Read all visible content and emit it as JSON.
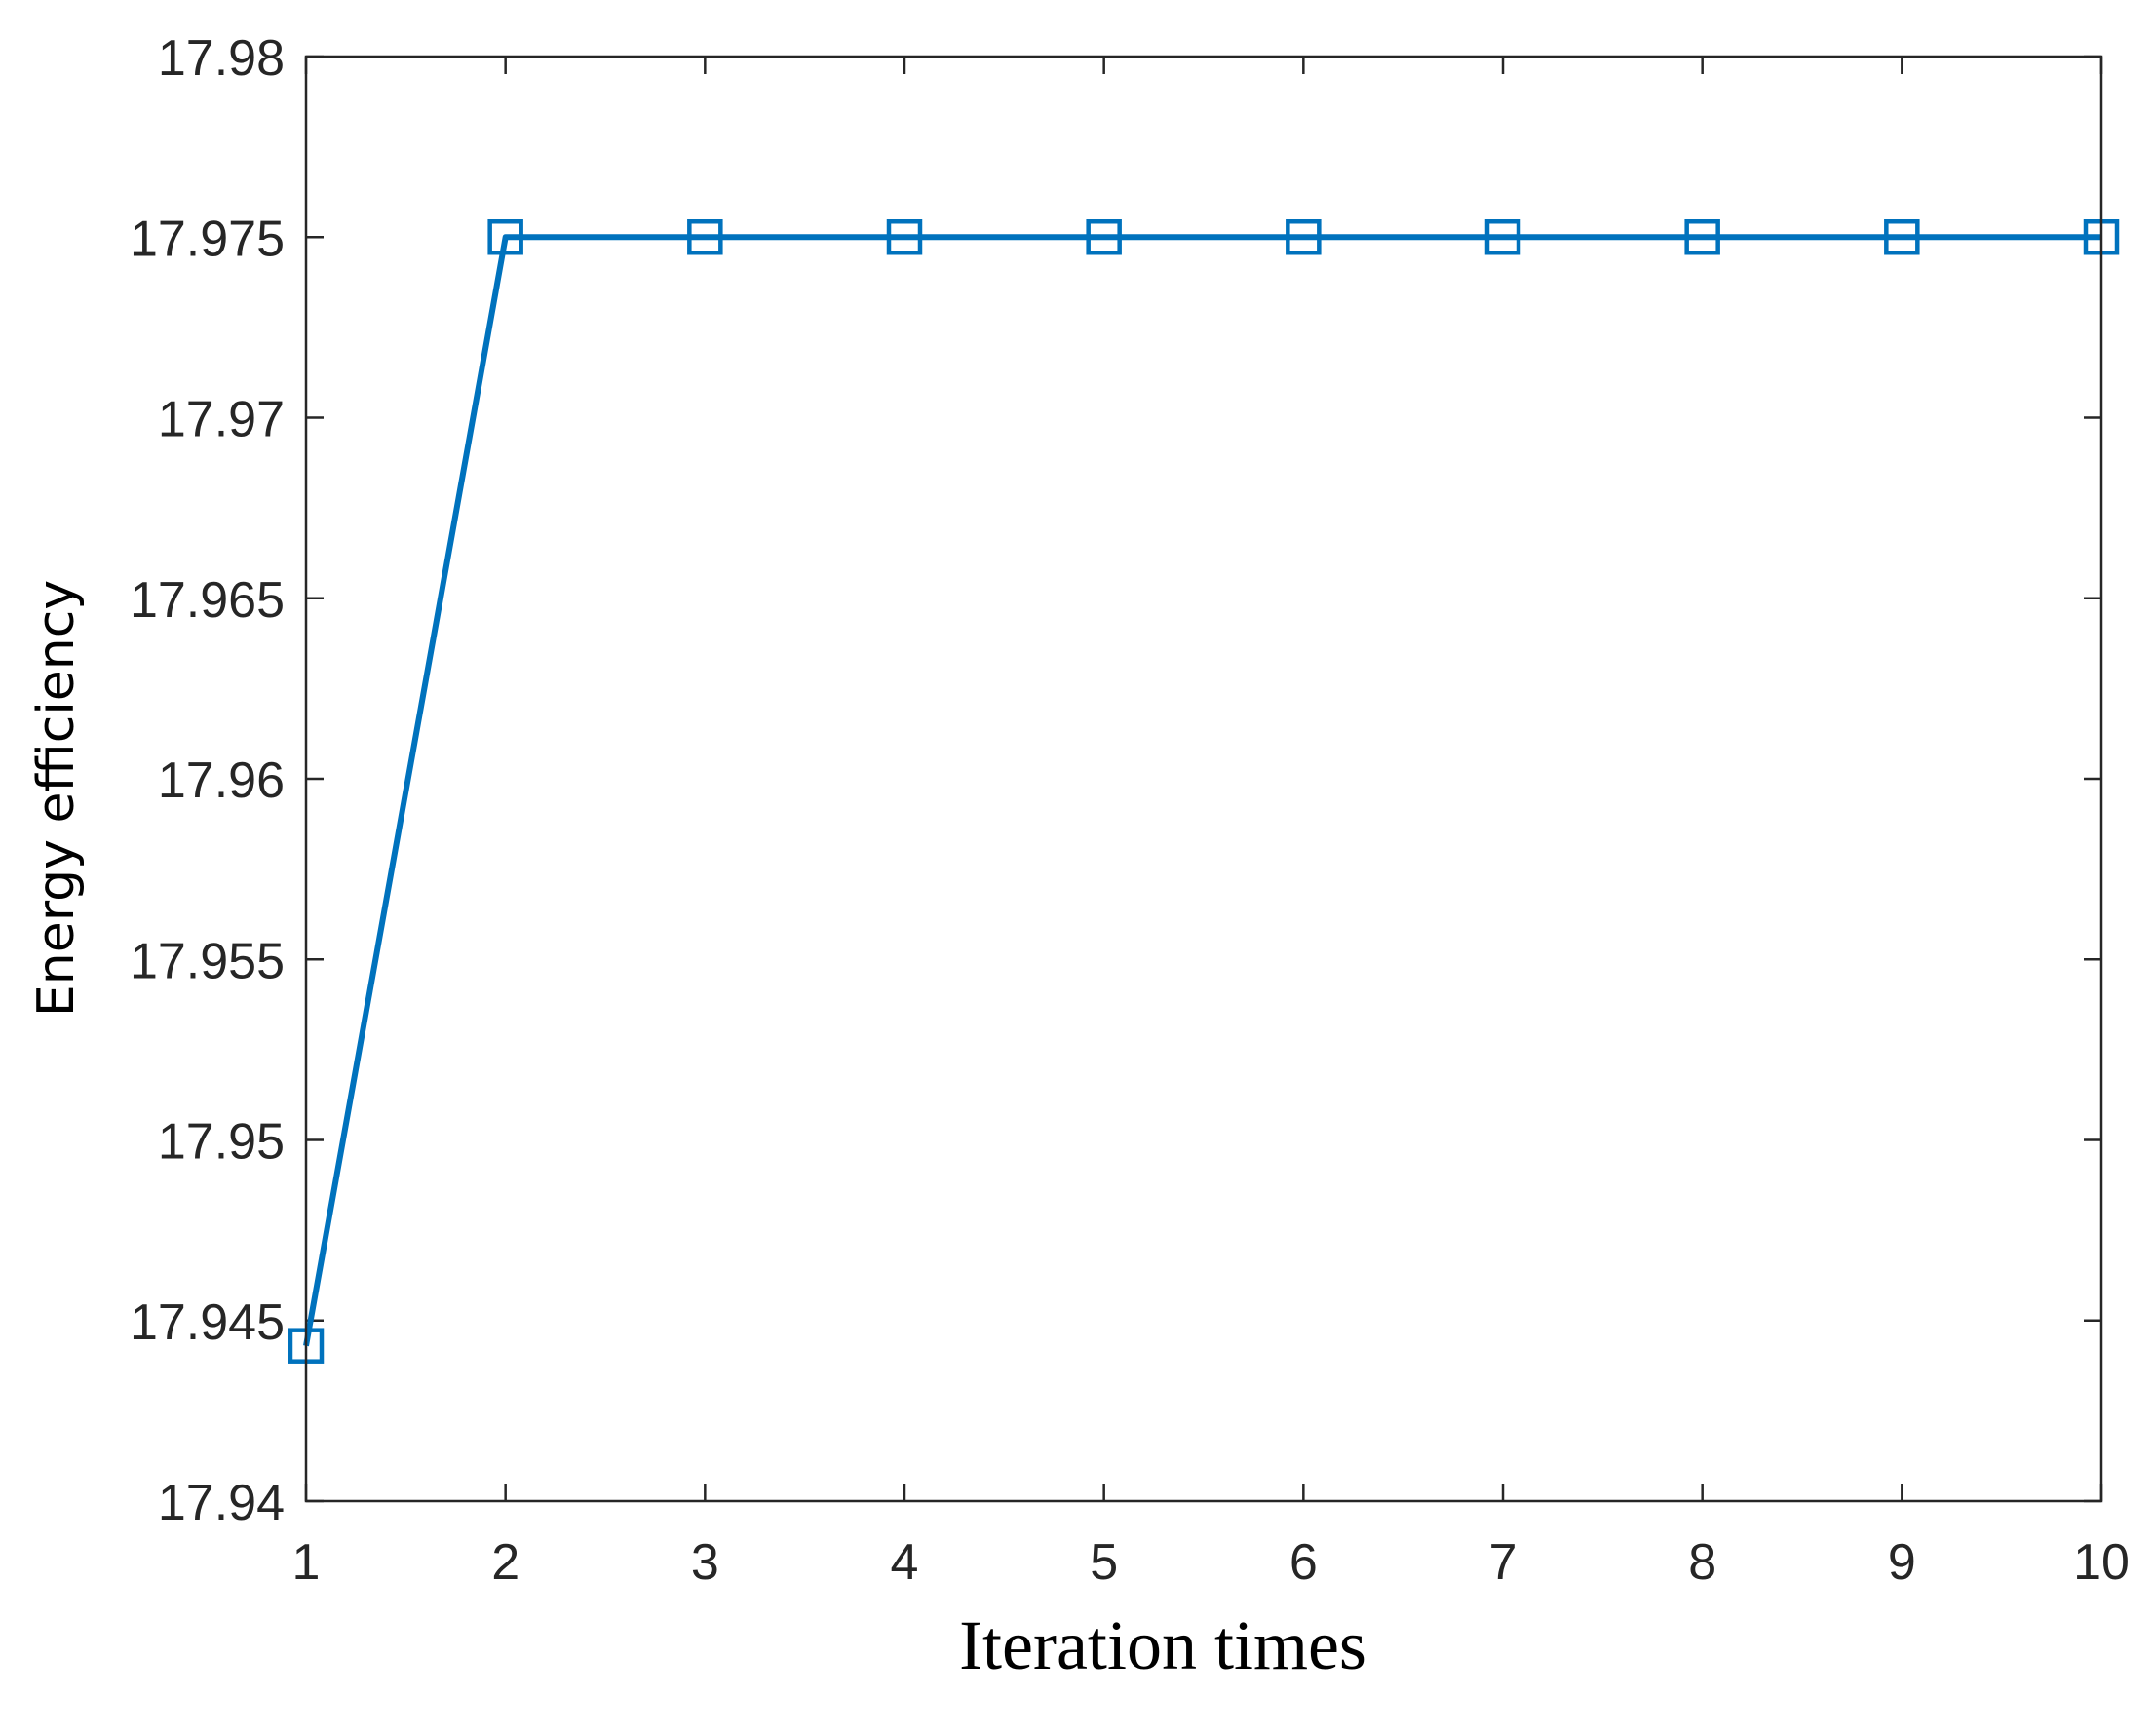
{
  "chart_data": {
    "type": "line",
    "title": "",
    "xlabel": "Iteration times",
    "ylabel": "Energy efficiency",
    "xlim": [
      1,
      10
    ],
    "ylim": [
      17.94,
      17.98
    ],
    "xticks": [
      1,
      2,
      3,
      4,
      5,
      6,
      7,
      8,
      9,
      10
    ],
    "yticks": [
      17.94,
      17.945,
      17.95,
      17.955,
      17.96,
      17.965,
      17.97,
      17.975,
      17.98
    ],
    "ytick_labels": [
      "17.94",
      "17.945",
      "17.95",
      "17.955",
      "17.96",
      "17.965",
      "17.97",
      "17.975",
      "17.98"
    ],
    "grid": false,
    "legend": "none",
    "series": [
      {
        "color": "#0072BD",
        "marker": "square",
        "x": [
          1,
          2,
          3,
          4,
          5,
          6,
          7,
          8,
          9,
          10
        ],
        "y": [
          17.9443,
          17.975,
          17.975,
          17.975,
          17.975,
          17.975,
          17.975,
          17.975,
          17.975,
          17.975
        ]
      }
    ]
  }
}
